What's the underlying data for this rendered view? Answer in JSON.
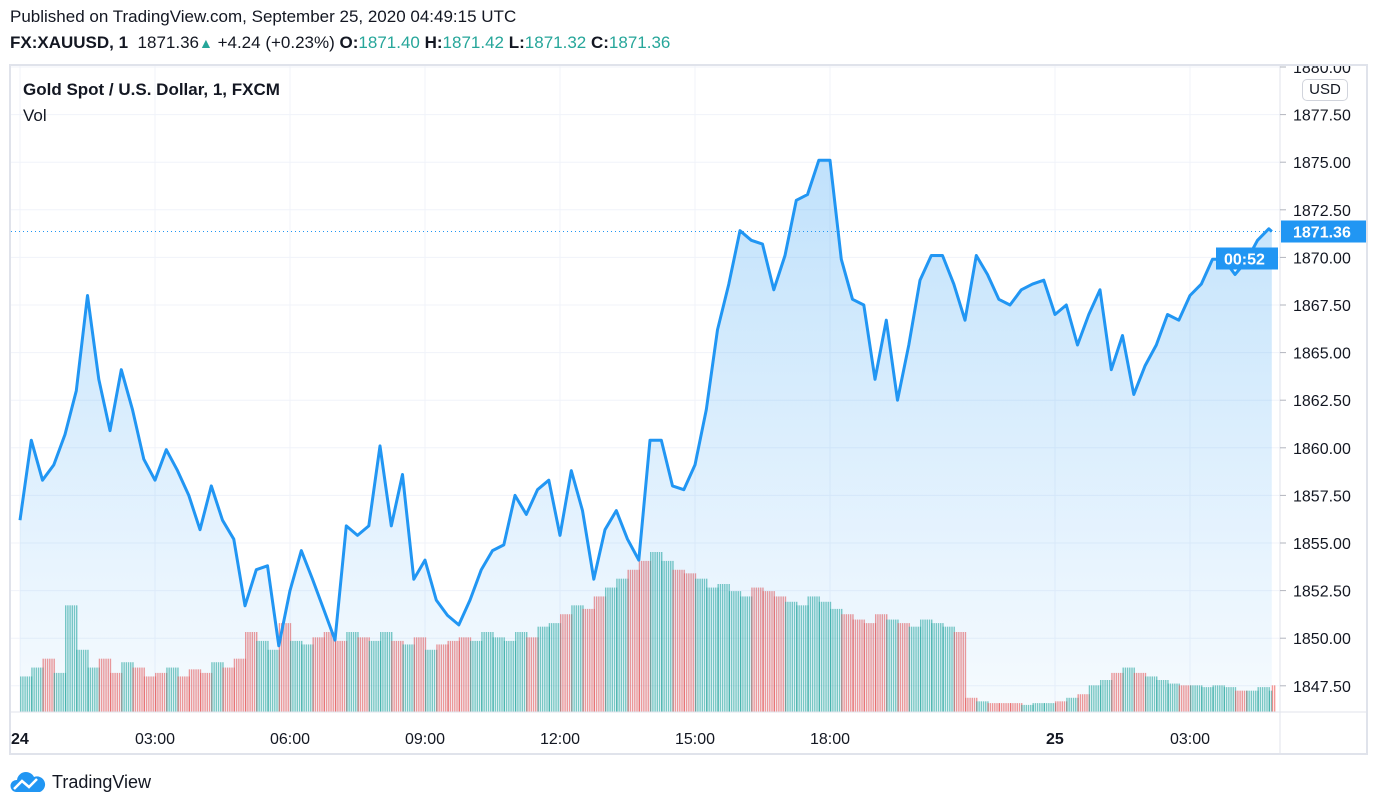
{
  "header": {
    "published": "Published on TradingView.com, September 25, 2020 04:49:15 UTC",
    "symbol": "FX:XAUUSD, 1",
    "last": "1871.36",
    "change": "+4.24 (+0.23%)",
    "o_label": "O:",
    "o": "1871.40",
    "h_label": "H:",
    "h": "1871.42",
    "l_label": "L:",
    "l": "1871.32",
    "c_label": "C:",
    "c": "1871.36"
  },
  "pane": {
    "title": "Gold Spot / U.S. Dollar, 1, FXCM",
    "indicator": "Vol",
    "currency": "USD"
  },
  "brand": "TradingView",
  "colors": {
    "line": "#2196f3",
    "up": "#26a69a",
    "down": "#ef5350",
    "grid": "#f0f3fa",
    "axis_text": "#131722"
  },
  "chart_data": {
    "type": "area",
    "title": "Gold Spot / U.S. Dollar, 1, FXCM",
    "ylim": [
      1846.5,
      1880.6
    ],
    "yticks": [
      "1847.50",
      "1850.00",
      "1852.50",
      "1855.00",
      "1857.50",
      "1860.00",
      "1862.50",
      "1865.00",
      "1867.50",
      "1870.00",
      "1872.50",
      "1875.00",
      "1877.50",
      "1880.00"
    ],
    "xticks": [
      {
        "t": "24 00:00",
        "label": "24"
      },
      {
        "t": "24 03:00",
        "label": "03:00"
      },
      {
        "t": "24 06:00",
        "label": "06:00"
      },
      {
        "t": "24 09:00",
        "label": "09:00"
      },
      {
        "t": "24 12:00",
        "label": "12:00"
      },
      {
        "t": "24 15:00",
        "label": "15:00"
      },
      {
        "t": "24 18:00",
        "label": "18:00"
      },
      {
        "t": "25 00:00",
        "label": "25"
      },
      {
        "t": "25 03:00",
        "label": "03:00"
      }
    ],
    "session_break": "24 21:00-22:00",
    "last_price": "1871.36",
    "countdown": "00:52",
    "grid": true,
    "series": [
      {
        "t": "24 00:00",
        "p": 1856.2
      },
      {
        "t": "24 00:15",
        "p": 1860.4
      },
      {
        "t": "24 00:30",
        "p": 1858.3
      },
      {
        "t": "24 00:45",
        "p": 1859.1
      },
      {
        "t": "24 01:00",
        "p": 1860.7
      },
      {
        "t": "24 01:15",
        "p": 1863.0
      },
      {
        "t": "24 01:30",
        "p": 1868.0
      },
      {
        "t": "24 01:45",
        "p": 1863.6
      },
      {
        "t": "24 02:00",
        "p": 1860.9
      },
      {
        "t": "24 02:15",
        "p": 1864.1
      },
      {
        "t": "24 02:30",
        "p": 1862.0
      },
      {
        "t": "24 02:45",
        "p": 1859.4
      },
      {
        "t": "24 03:00",
        "p": 1858.3
      },
      {
        "t": "24 03:15",
        "p": 1859.9
      },
      {
        "t": "24 03:30",
        "p": 1858.8
      },
      {
        "t": "24 03:45",
        "p": 1857.5
      },
      {
        "t": "24 04:00",
        "p": 1855.7
      },
      {
        "t": "24 04:15",
        "p": 1858.0
      },
      {
        "t": "24 04:30",
        "p": 1856.2
      },
      {
        "t": "24 04:45",
        "p": 1855.2
      },
      {
        "t": "24 05:00",
        "p": 1851.7
      },
      {
        "t": "24 05:15",
        "p": 1853.6
      },
      {
        "t": "24 05:30",
        "p": 1853.8
      },
      {
        "t": "24 05:45",
        "p": 1849.6
      },
      {
        "t": "24 06:00",
        "p": 1852.5
      },
      {
        "t": "24 06:15",
        "p": 1854.6
      },
      {
        "t": "24 06:30",
        "p": 1853.1
      },
      {
        "t": "24 06:45",
        "p": 1851.5
      },
      {
        "t": "24 07:00",
        "p": 1849.9
      },
      {
        "t": "24 07:15",
        "p": 1855.9
      },
      {
        "t": "24 07:30",
        "p": 1855.4
      },
      {
        "t": "24 07:45",
        "p": 1855.9
      },
      {
        "t": "24 08:00",
        "p": 1860.1
      },
      {
        "t": "24 08:15",
        "p": 1855.9
      },
      {
        "t": "24 08:30",
        "p": 1858.6
      },
      {
        "t": "24 08:45",
        "p": 1853.1
      },
      {
        "t": "24 09:00",
        "p": 1854.1
      },
      {
        "t": "24 09:15",
        "p": 1852.0
      },
      {
        "t": "24 09:30",
        "p": 1851.2
      },
      {
        "t": "24 09:45",
        "p": 1850.7
      },
      {
        "t": "24 10:00",
        "p": 1852.0
      },
      {
        "t": "24 10:15",
        "p": 1853.6
      },
      {
        "t": "24 10:30",
        "p": 1854.6
      },
      {
        "t": "24 10:45",
        "p": 1854.9
      },
      {
        "t": "24 11:00",
        "p": 1857.5
      },
      {
        "t": "24 11:15",
        "p": 1856.5
      },
      {
        "t": "24 11:30",
        "p": 1857.8
      },
      {
        "t": "24 11:45",
        "p": 1858.3
      },
      {
        "t": "24 12:00",
        "p": 1855.4
      },
      {
        "t": "24 12:15",
        "p": 1858.8
      },
      {
        "t": "24 12:30",
        "p": 1856.7
      },
      {
        "t": "24 12:45",
        "p": 1853.1
      },
      {
        "t": "24 13:00",
        "p": 1855.7
      },
      {
        "t": "24 13:15",
        "p": 1856.7
      },
      {
        "t": "24 13:30",
        "p": 1855.2
      },
      {
        "t": "24 13:45",
        "p": 1854.1
      },
      {
        "t": "24 14:00",
        "p": 1860.4
      },
      {
        "t": "24 14:15",
        "p": 1860.4
      },
      {
        "t": "24 14:30",
        "p": 1858.0
      },
      {
        "t": "24 14:45",
        "p": 1857.8
      },
      {
        "t": "24 15:00",
        "p": 1859.1
      },
      {
        "t": "24 15:15",
        "p": 1862.0
      },
      {
        "t": "24 15:30",
        "p": 1866.2
      },
      {
        "t": "24 15:45",
        "p": 1868.6
      },
      {
        "t": "24 16:00",
        "p": 1871.4
      },
      {
        "t": "24 16:15",
        "p": 1870.9
      },
      {
        "t": "24 16:30",
        "p": 1870.7
      },
      {
        "t": "24 16:45",
        "p": 1868.3
      },
      {
        "t": "24 17:00",
        "p": 1870.1
      },
      {
        "t": "24 17:15",
        "p": 1873.0
      },
      {
        "t": "24 17:30",
        "p": 1873.3
      },
      {
        "t": "24 17:45",
        "p": 1875.1
      },
      {
        "t": "24 18:00",
        "p": 1875.1
      },
      {
        "t": "24 18:15",
        "p": 1869.9
      },
      {
        "t": "24 18:30",
        "p": 1867.8
      },
      {
        "t": "24 18:45",
        "p": 1867.5
      },
      {
        "t": "24 19:00",
        "p": 1863.6
      },
      {
        "t": "24 19:15",
        "p": 1866.7
      },
      {
        "t": "24 19:30",
        "p": 1862.5
      },
      {
        "t": "24 19:45",
        "p": 1865.4
      },
      {
        "t": "24 20:00",
        "p": 1868.8
      },
      {
        "t": "24 20:15",
        "p": 1870.1
      },
      {
        "t": "24 20:30",
        "p": 1870.1
      },
      {
        "t": "24 20:45",
        "p": 1868.6
      },
      {
        "t": "24 22:00",
        "p": 1866.7
      },
      {
        "t": "24 22:15",
        "p": 1870.1
      },
      {
        "t": "24 22:30",
        "p": 1869.1
      },
      {
        "t": "24 22:45",
        "p": 1867.8
      },
      {
        "t": "24 23:00",
        "p": 1867.5
      },
      {
        "t": "24 23:15",
        "p": 1868.3
      },
      {
        "t": "24 23:30",
        "p": 1868.6
      },
      {
        "t": "24 23:45",
        "p": 1868.8
      },
      {
        "t": "25 00:00",
        "p": 1867.0
      },
      {
        "t": "25 00:15",
        "p": 1867.5
      },
      {
        "t": "25 00:30",
        "p": 1865.4
      },
      {
        "t": "25 00:45",
        "p": 1867.0
      },
      {
        "t": "25 01:00",
        "p": 1868.3
      },
      {
        "t": "25 01:15",
        "p": 1864.1
      },
      {
        "t": "25 01:30",
        "p": 1865.9
      },
      {
        "t": "25 01:45",
        "p": 1862.8
      },
      {
        "t": "25 02:00",
        "p": 1864.3
      },
      {
        "t": "25 02:15",
        "p": 1865.4
      },
      {
        "t": "25 02:30",
        "p": 1867.0
      },
      {
        "t": "25 02:45",
        "p": 1866.7
      },
      {
        "t": "25 03:00",
        "p": 1868.0
      },
      {
        "t": "25 03:15",
        "p": 1868.6
      },
      {
        "t": "25 03:30",
        "p": 1869.9
      },
      {
        "t": "25 03:45",
        "p": 1869.9
      },
      {
        "t": "25 04:00",
        "p": 1869.1
      },
      {
        "t": "25 04:15",
        "p": 1869.8
      },
      {
        "t": "25 04:30",
        "p": 1870.9
      },
      {
        "t": "25 04:45",
        "p": 1871.5
      },
      {
        "t": "25 04:49",
        "p": 1871.36
      }
    ],
    "volume_relative": [
      20,
      25,
      30,
      22,
      60,
      35,
      25,
      30,
      22,
      28,
      25,
      20,
      22,
      25,
      20,
      24,
      22,
      28,
      25,
      30,
      45,
      40,
      35,
      50,
      40,
      38,
      42,
      45,
      40,
      45,
      42,
      40,
      45,
      40,
      38,
      42,
      35,
      38,
      40,
      42,
      40,
      45,
      42,
      40,
      45,
      42,
      48,
      50,
      55,
      60,
      58,
      65,
      70,
      75,
      80,
      85,
      90,
      85,
      80,
      78,
      75,
      70,
      72,
      68,
      65,
      70,
      68,
      65,
      62,
      60,
      65,
      62,
      58,
      55,
      52,
      50,
      55,
      52,
      50,
      48,
      52,
      50,
      48,
      45,
      8,
      6,
      5,
      5,
      5,
      4,
      5,
      5,
      6,
      8,
      10,
      15,
      18,
      22,
      25,
      22,
      20,
      18,
      16,
      15,
      15,
      14,
      15,
      14,
      12,
      12,
      14,
      12,
      15
    ]
  }
}
